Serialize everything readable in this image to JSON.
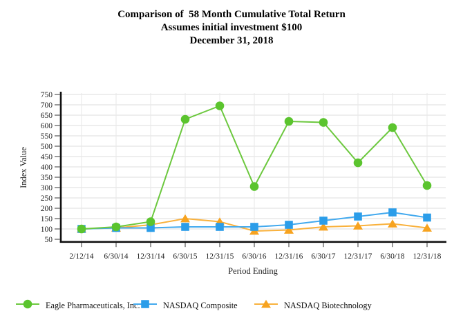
{
  "chart_data": {
    "type": "line",
    "title": "Comparison of  58 Month Cumulative Total Return",
    "subtitle": "Assumes initial investment $100",
    "date_line": "December 31, 2018",
    "xlabel": "Period Ending",
    "ylabel": "Index Value",
    "ylim": [
      50,
      750
    ],
    "ytick_step": 50,
    "grid": true,
    "legend_position": "bottom",
    "categories": [
      "2/12/14",
      "6/30/14",
      "12/31/14",
      "6/30/15",
      "12/31/15",
      "6/30/16",
      "12/31/16",
      "6/30/17",
      "12/31/17",
      "6/30/18",
      "12/31/18"
    ],
    "series": [
      {
        "name": "Eagle Pharmaceuticals, Inc.",
        "marker": "circle",
        "color": "#5BC42E",
        "line_color": "#6CC83E",
        "values": [
          100,
          110,
          135,
          630,
          695,
          305,
          620,
          615,
          420,
          590,
          310
        ]
      },
      {
        "name": "NASDAQ Composite",
        "marker": "square",
        "color": "#2B9DE9",
        "line_color": "#42A9EE",
        "values": [
          100,
          105,
          105,
          110,
          110,
          110,
          120,
          140,
          160,
          180,
          155
        ]
      },
      {
        "name": "NASDAQ Biotechnology",
        "marker": "triangle",
        "color": "#F7A31F",
        "line_color": "#F9B13C",
        "values": [
          100,
          105,
          120,
          150,
          135,
          90,
          95,
          110,
          115,
          125,
          105
        ]
      }
    ],
    "colors": {
      "grid": "#dedede",
      "axis": "#111111",
      "tick": "#555555",
      "text": "#222222"
    }
  }
}
